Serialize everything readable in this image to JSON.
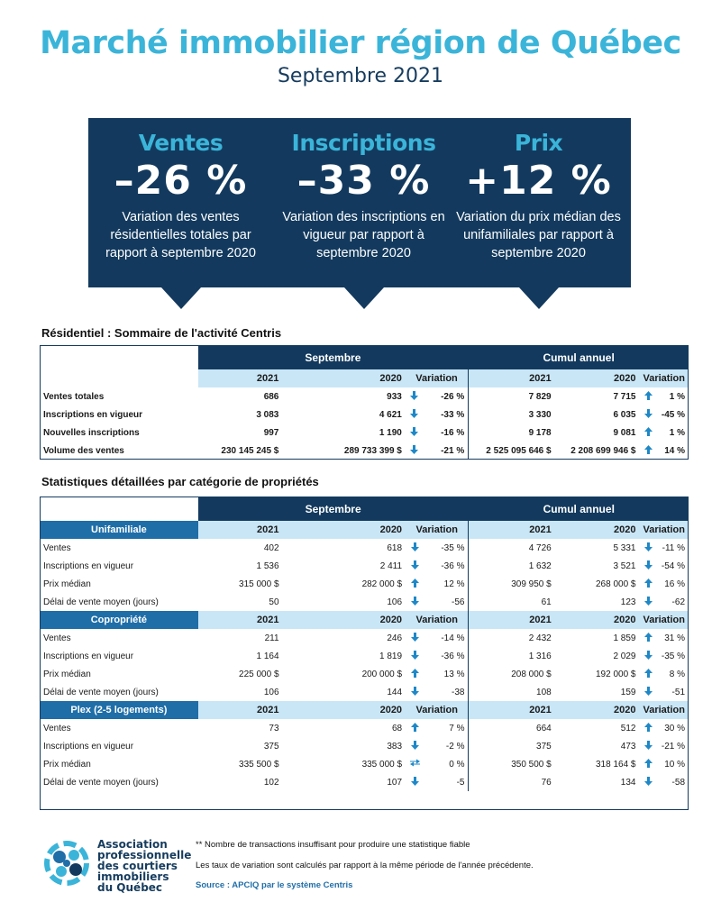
{
  "header": {
    "title": "Marché immobilier région de Québec",
    "subtitle": "Septembre 2021"
  },
  "cards": [
    {
      "title": "Ventes",
      "value": "–26 %",
      "desc": "Variation des ventes résidentielles totales par rapport à septembre 2020"
    },
    {
      "title": "Inscriptions",
      "value": "–33 %",
      "desc": "Variation des inscriptions en vigueur par rapport à septembre 2020"
    },
    {
      "title": "Prix",
      "value": "+12 %",
      "desc": "Variation du prix médian des unifamiliales par rapport à septembre 2020"
    }
  ],
  "summary": {
    "title": "Résidentiel : Sommaire de l'activité Centris",
    "group_left": "Septembre",
    "group_right": "Cumul annuel",
    "cols": [
      "2021",
      "2020",
      "Variation",
      "2021",
      "2020",
      "Variation"
    ],
    "rows": [
      {
        "label": "Ventes totales",
        "a": "686",
        "b": "933",
        "ar1": "down",
        "v1": "-26 %",
        "c": "7 829",
        "d": "7 715",
        "ar2": "up",
        "v2": "1 %"
      },
      {
        "label": "Inscriptions en vigueur",
        "a": "3 083",
        "b": "4 621",
        "ar1": "down",
        "v1": "-33 %",
        "c": "3 330",
        "d": "6 035",
        "ar2": "down",
        "v2": "-45 %"
      },
      {
        "label": "Nouvelles inscriptions",
        "a": "997",
        "b": "1 190",
        "ar1": "down",
        "v1": "-16 %",
        "c": "9 178",
        "d": "9 081",
        "ar2": "up",
        "v2": "1 %"
      },
      {
        "label": "Volume des ventes",
        "a": "230 145 245  $",
        "b": "289 733 399  $",
        "ar1": "down",
        "v1": "-21 %",
        "c": "2 525 095 646  $",
        "d": "2 208 699 946  $",
        "ar2": "up",
        "v2": "14 %"
      }
    ]
  },
  "detail": {
    "title": "Statistiques détaillées par catégorie de propriétés",
    "group_left": "Septembre",
    "group_right": "Cumul annuel",
    "categories": [
      {
        "name": "Unifamiliale",
        "rows": [
          {
            "label": "Ventes",
            "a": "402",
            "b": "618",
            "ar1": "down",
            "v1": "-35 %",
            "c": "4 726",
            "d": "5 331",
            "ar2": "down",
            "v2": "-11 %"
          },
          {
            "label": "Inscriptions en vigueur",
            "a": "1 536",
            "b": "2 411",
            "ar1": "down",
            "v1": "-36 %",
            "c": "1 632",
            "d": "3 521",
            "ar2": "down",
            "v2": "-54 %"
          },
          {
            "label": "Prix médian",
            "a": "315 000 $",
            "b": "282 000 $",
            "ar1": "up",
            "v1": "12 %",
            "c": "309 950 $",
            "d": "268 000 $",
            "ar2": "up",
            "v2": "16 %"
          },
          {
            "label": "Délai de vente moyen (jours)",
            "a": "50",
            "b": "106",
            "ar1": "down",
            "v1": "-56",
            "c": "61",
            "d": "123",
            "ar2": "down",
            "v2": "-62"
          }
        ]
      },
      {
        "name": "Copropriété",
        "rows": [
          {
            "label": "Ventes",
            "a": "211",
            "b": "246",
            "ar1": "down",
            "v1": "-14 %",
            "c": "2 432",
            "d": "1 859",
            "ar2": "up",
            "v2": "31 %"
          },
          {
            "label": "Inscriptions en vigueur",
            "a": "1 164",
            "b": "1 819",
            "ar1": "down",
            "v1": "-36 %",
            "c": "1 316",
            "d": "2 029",
            "ar2": "down",
            "v2": "-35 %"
          },
          {
            "label": "Prix médian",
            "a": "225 000 $",
            "b": "200 000 $",
            "ar1": "up",
            "v1": "13 %",
            "c": "208 000 $",
            "d": "192 000 $",
            "ar2": "up",
            "v2": "8 %"
          },
          {
            "label": "Délai de vente moyen (jours)",
            "a": "106",
            "b": "144",
            "ar1": "down",
            "v1": "-38",
            "c": "108",
            "d": "159",
            "ar2": "down",
            "v2": "-51"
          }
        ]
      },
      {
        "name": "Plex (2-5 logements)",
        "rows": [
          {
            "label": "Ventes",
            "a": "73",
            "b": "68",
            "ar1": "up",
            "v1": "7 %",
            "c": "664",
            "d": "512",
            "ar2": "up",
            "v2": "30 %"
          },
          {
            "label": "Inscriptions en vigueur",
            "a": "375",
            "b": "383",
            "ar1": "down",
            "v1": "-2 %",
            "c": "375",
            "d": "473",
            "ar2": "down",
            "v2": "-21 %"
          },
          {
            "label": "Prix médian",
            "a": "335 500 $",
            "b": "335 000 $",
            "ar1": "flat",
            "v1": "0 %",
            "c": "350 500 $",
            "d": "318 164 $",
            "ar2": "up",
            "v2": "10 %"
          },
          {
            "label": "Délai de vente moyen (jours)",
            "a": "102",
            "b": "107",
            "ar1": "down",
            "v1": "-5",
            "c": "76",
            "d": "134",
            "ar2": "down",
            "v2": "-58"
          }
        ]
      }
    ]
  },
  "footer": {
    "note1": "** Nombre de transactions insuffisant pour produire une statistique fiable",
    "note2": "Les taux de variation sont calculés par rapport à la même période de l'année précédente.",
    "source": "Source : APCIQ par le système Centris",
    "logo_lines": [
      "Association",
      "professionnelle",
      "des courtiers",
      "immobiliers",
      "du Québec"
    ]
  },
  "colors": {
    "accent": "#3bb4d9",
    "navy": "#133a5e",
    "light_blue": "#c9e6f6",
    "mid_blue": "#1f6ea8"
  },
  "icons": {
    "up": "arrow-up-icon",
    "down": "arrow-down-icon",
    "flat": "arrows-flat-icon"
  }
}
